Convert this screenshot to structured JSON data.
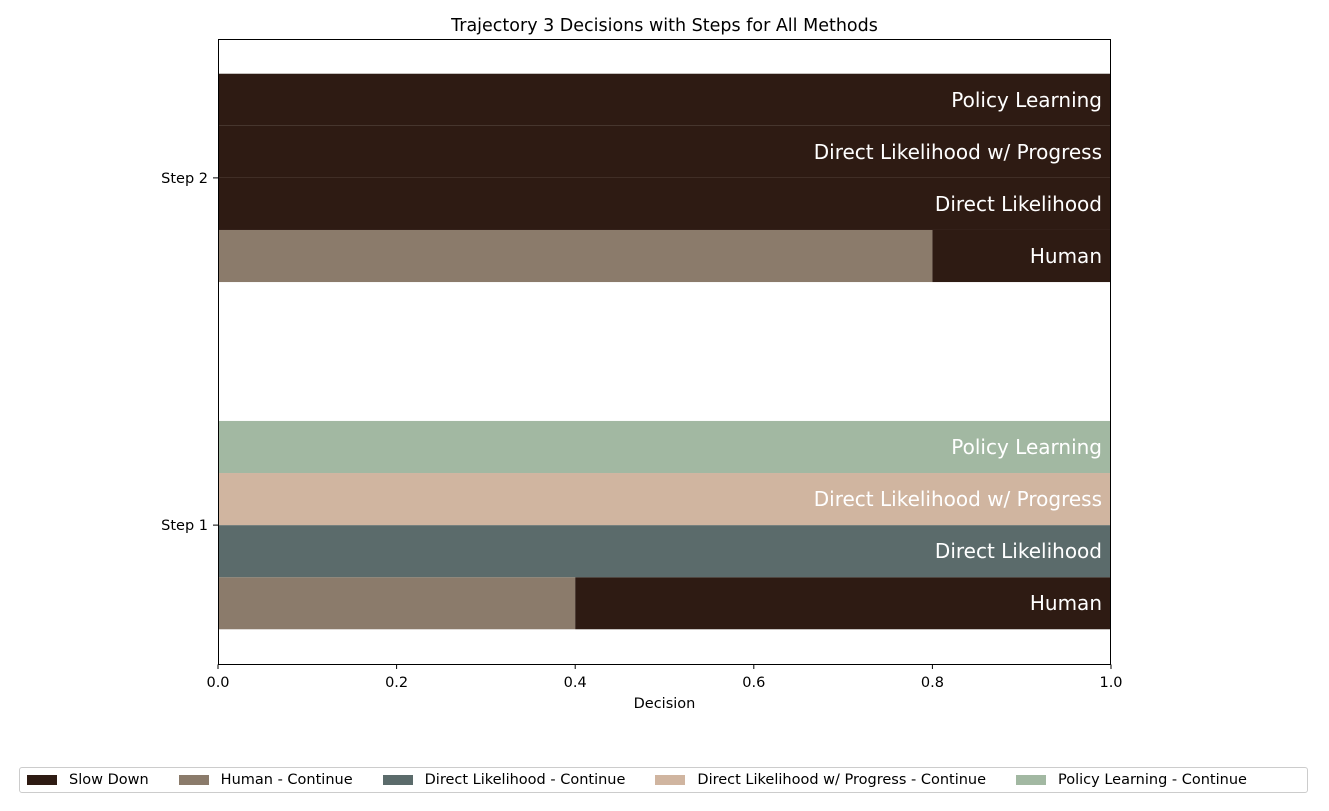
{
  "chart_data": {
    "type": "bar",
    "orientation": "horizontal",
    "stacked": true,
    "title": "Trajectory 3 Decisions with Steps for All Methods",
    "xlabel": "Decision",
    "ylabel": "",
    "xlim": [
      0,
      1
    ],
    "xticks": [
      "0.0",
      "0.2",
      "0.4",
      "0.6",
      "0.8",
      "1.0"
    ],
    "grid": false,
    "legend_placement": "bottom",
    "categories": [
      "Step 1",
      "Step 2"
    ],
    "methods": [
      "Human",
      "Direct Likelihood",
      "Direct Likelihood w/ Progress",
      "Policy Learning"
    ],
    "series": [
      {
        "name": "Slow Down",
        "color": "#2e1b13",
        "values": [
          [
            0.6,
            0.0,
            0.0,
            0.0
          ],
          [
            0.2,
            1.0,
            1.0,
            1.0
          ]
        ]
      },
      {
        "name": "Human - Continue",
        "color": "#8b7b6b",
        "values": [
          [
            0.4,
            0,
            0,
            0
          ],
          [
            0.8,
            0,
            0,
            0
          ]
        ]
      },
      {
        "name": "Direct Likelihood - Continue",
        "color": "#5b6b6b",
        "values": [
          [
            0,
            1.0,
            0,
            0
          ],
          [
            0,
            0.0,
            0,
            0
          ]
        ]
      },
      {
        "name": "Direct Likelihood w/ Progress - Continue",
        "color": "#d0b5a0",
        "values": [
          [
            0,
            0,
            1.0,
            0
          ],
          [
            0,
            0,
            0.0,
            0
          ]
        ]
      },
      {
        "name": "Policy Learning - Continue",
        "color": "#a2b8a2",
        "values": [
          [
            0,
            0,
            0,
            1.0
          ],
          [
            0,
            0,
            0,
            0.0
          ]
        ]
      }
    ]
  }
}
